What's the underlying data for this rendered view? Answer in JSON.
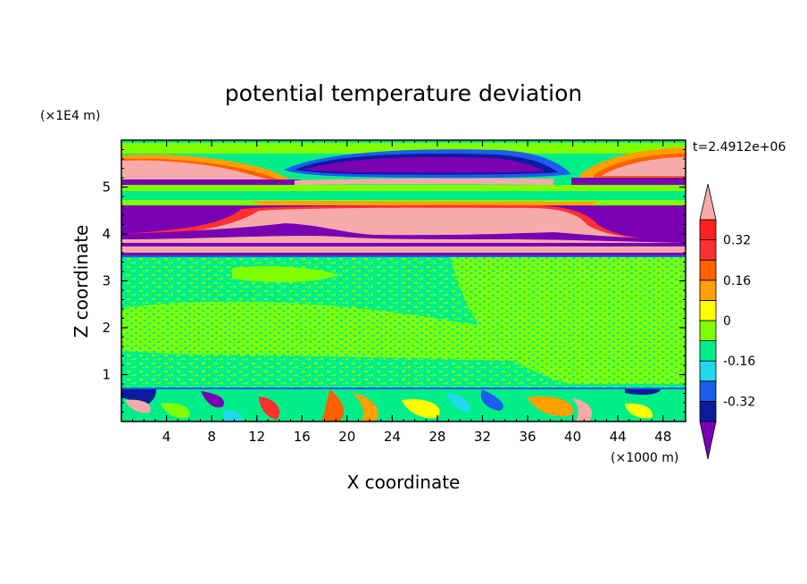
{
  "chart_data": {
    "type": "heatmap",
    "title": "potential temperature deviation",
    "xlabel": "X coordinate",
    "ylabel": "Z coordinate",
    "x_unit": "(×1000 m)",
    "y_unit": "(×1E4 m)",
    "time_label": "t=2.4912e+06",
    "xlim": [
      0,
      50
    ],
    "ylim": [
      0,
      6
    ],
    "x_ticks": [
      4,
      8,
      12,
      16,
      20,
      24,
      28,
      32,
      36,
      40,
      44,
      48
    ],
    "y_ticks": [
      1,
      2,
      3,
      4,
      5
    ],
    "colorbar": {
      "levels": [
        -0.4,
        -0.32,
        -0.24,
        -0.16,
        -0.08,
        0,
        0.08,
        0.16,
        0.24,
        0.32,
        0.4
      ],
      "tick_labels": [
        "0.32",
        "0.16",
        "0",
        "-0.16",
        "-0.32"
      ],
      "tick_values": [
        0.32,
        0.16,
        0,
        -0.16,
        -0.32
      ],
      "colors_low_to_high": [
        "#0c1a9e",
        "#1c5cf0",
        "#22d8ee",
        "#00ee88",
        "#80ff00",
        "#ffff00",
        "#ffa000",
        "#ff6000",
        "#ff3030",
        "#ff2020"
      ],
      "under_color": "#7a00b4",
      "over_color": "#f6aaaa"
    },
    "bands": [
      {
        "z_range": [
          5.55,
          5.9
        ],
        "pattern": "pink warm layer at left and right, purple cold core mid-domain"
      },
      {
        "z_range": [
          5.0,
          5.15
        ],
        "pattern": "purple cold strip at left and right, green between"
      },
      {
        "z_range": [
          4.05,
          4.65
        ],
        "pattern": "purple cold on left and right, pink warm core mid-domain"
      },
      {
        "z_range": [
          3.6,
          4.05
        ],
        "pattern": "interleaved pink and purple thin layers"
      },
      {
        "z_range": [
          0.7,
          3.6
        ],
        "pattern": "noisy green field with values near 0 to 0.08"
      },
      {
        "z_range": [
          0,
          0.7
        ],
        "pattern": "turbulent mixed values across full colour range"
      }
    ]
  }
}
